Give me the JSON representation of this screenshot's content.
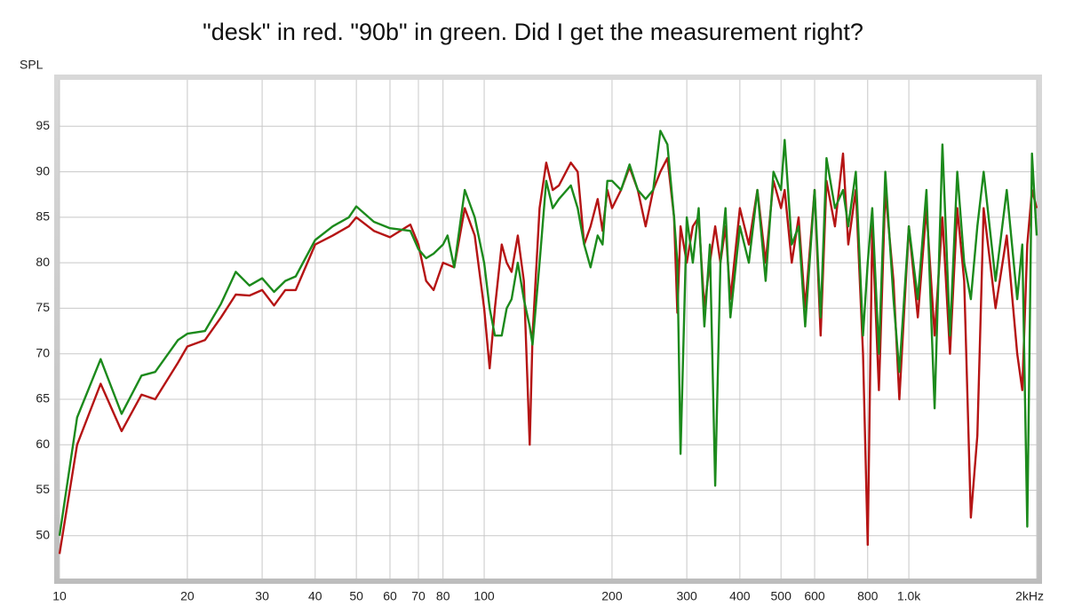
{
  "chart_data": {
    "type": "line",
    "title": "\"desk\" in red. \"90b\" in green. Did I get the measurement right?",
    "ylabel": "SPL",
    "xlog": true,
    "grid": true,
    "xlim": [
      10,
      2000
    ],
    "ylim": [
      45.3,
      100.1
    ],
    "xticks": [
      10,
      20,
      30,
      40,
      50,
      60,
      70,
      80,
      100,
      200,
      300,
      400,
      500,
      600,
      800,
      {
        "value": 1000,
        "label": "1.0k"
      },
      {
        "value": 2000,
        "label": "2kHz"
      }
    ],
    "yticks": [
      50,
      55,
      60,
      65,
      70,
      75,
      80,
      85,
      90,
      95
    ],
    "x": [
      10,
      11,
      12.5,
      14,
      15.6,
      16.8,
      19,
      20,
      22,
      24,
      26,
      28,
      30,
      32,
      34,
      36,
      40,
      44,
      48,
      50,
      55,
      60,
      67,
      70,
      73,
      76,
      80,
      82,
      85,
      90,
      95,
      100,
      103,
      106,
      110,
      113,
      116,
      120,
      124,
      128,
      130,
      135,
      140,
      145,
      150,
      160,
      166,
      172,
      178,
      185,
      190,
      195,
      200,
      210,
      220,
      230,
      240,
      250,
      260,
      270,
      280,
      285,
      290,
      300,
      310,
      320,
      330,
      340,
      350,
      360,
      370,
      380,
      400,
      420,
      440,
      460,
      480,
      500,
      510,
      530,
      550,
      570,
      600,
      620,
      640,
      670,
      700,
      720,
      750,
      780,
      800,
      820,
      850,
      880,
      920,
      950,
      1000,
      1050,
      1100,
      1150,
      1200,
      1250,
      1300,
      1350,
      1400,
      1450,
      1500,
      1600,
      1700,
      1800,
      1850,
      1900,
      1950,
      2000
    ],
    "series": [
      {
        "name": "desk",
        "color": "#b51414",
        "values": [
          48,
          60,
          66.7,
          61.5,
          65.5,
          65,
          69,
          70.8,
          71.5,
          74,
          76.5,
          76.4,
          77,
          75.3,
          77,
          77,
          82,
          83,
          84,
          85,
          83.5,
          82.8,
          84.2,
          82,
          78,
          77,
          80,
          79.8,
          79.5,
          86,
          83,
          75,
          68.4,
          75,
          82,
          80,
          79,
          83,
          78,
          60,
          72,
          86,
          91,
          88,
          88.5,
          91,
          90,
          82,
          84,
          87,
          83.5,
          88,
          86,
          88,
          90.5,
          88,
          84,
          88,
          90,
          91.5,
          85,
          74.5,
          84,
          80,
          84,
          85,
          75,
          80,
          84,
          80,
          84,
          76,
          86,
          82,
          88,
          80,
          89,
          86,
          88,
          80,
          85,
          75,
          88,
          72,
          89,
          84,
          92,
          82,
          88,
          70,
          49,
          84,
          66,
          88,
          78,
          65,
          84,
          74,
          86,
          72,
          85,
          70,
          86,
          78,
          52,
          61,
          86,
          75,
          83,
          70,
          66,
          82,
          88,
          86
        ]
      },
      {
        "name": "90b",
        "color": "#1c8a1c",
        "values": [
          50,
          63,
          69.4,
          63.4,
          67.6,
          68,
          71.5,
          72.2,
          72.5,
          75.5,
          79,
          77.5,
          78.3,
          76.8,
          78,
          78.5,
          82.5,
          84,
          85,
          86.2,
          84.5,
          83.8,
          83.5,
          81.5,
          80.5,
          81,
          82,
          83,
          79.5,
          88,
          85,
          80,
          75,
          72,
          72,
          75,
          76,
          80,
          76,
          73,
          71,
          80,
          89,
          86,
          87,
          88.5,
          86,
          82,
          79.5,
          83,
          82,
          89,
          89,
          88,
          90.8,
          88,
          87,
          88,
          94.5,
          93,
          85,
          80,
          59,
          85,
          80,
          86,
          73,
          82,
          55.5,
          80,
          86,
          74,
          84,
          80,
          88,
          78,
          90,
          88,
          93.5,
          82,
          84,
          73,
          88,
          74,
          91.5,
          86,
          88,
          84,
          90,
          72,
          80,
          86,
          70,
          90,
          76,
          68,
          84,
          76,
          88,
          64,
          93,
          72,
          90,
          80,
          76,
          84,
          90,
          78,
          88,
          76,
          82,
          51,
          92,
          83
        ]
      }
    ]
  }
}
